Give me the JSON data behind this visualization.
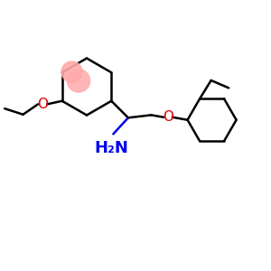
{
  "background": "#ffffff",
  "bond_color": "#000000",
  "amine_color": "#0000ee",
  "oxygen_color": "#dd0000",
  "aromatic_circle_color": "#ffaaaa",
  "bond_width": 1.8,
  "figsize": [
    3.0,
    3.0
  ],
  "dpi": 100,
  "xlim": [
    0,
    10
  ],
  "ylim": [
    0,
    10
  ]
}
